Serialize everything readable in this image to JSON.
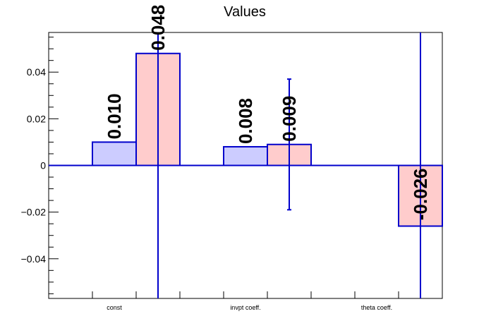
{
  "chart_data": {
    "type": "bar",
    "title": "Values",
    "xlabel": "",
    "ylabel": "",
    "ylim": [
      -0.057,
      0.057
    ],
    "grid": false,
    "categories": [
      "const",
      "invpt coeff.",
      "theta coeff."
    ],
    "yticks": [
      {
        "value": 0.04,
        "label": "0.04"
      },
      {
        "value": 0.02,
        "label": "0.02"
      },
      {
        "value": 0,
        "label": "0"
      },
      {
        "value": -0.02,
        "label": "−0.02"
      },
      {
        "value": -0.04,
        "label": "−0.04"
      }
    ],
    "series": [
      {
        "fill": "#ccccff",
        "stroke": "#0000cc",
        "values": [
          0.01,
          0.008,
          null
        ],
        "labels": [
          "0.010",
          "0.008",
          ""
        ],
        "err_low": [
          null,
          null,
          null
        ],
        "err_high": [
          null,
          null,
          null
        ]
      },
      {
        "fill": "#ffcccc",
        "stroke": "#0000cc",
        "values": [
          0.048,
          0.009,
          -0.026
        ],
        "labels": [
          "0.048",
          "0.009",
          "-0.026"
        ],
        "err_low": [
          -0.057,
          -0.019,
          -0.057
        ],
        "err_high": [
          0.057,
          0.037,
          0.057
        ]
      }
    ]
  }
}
